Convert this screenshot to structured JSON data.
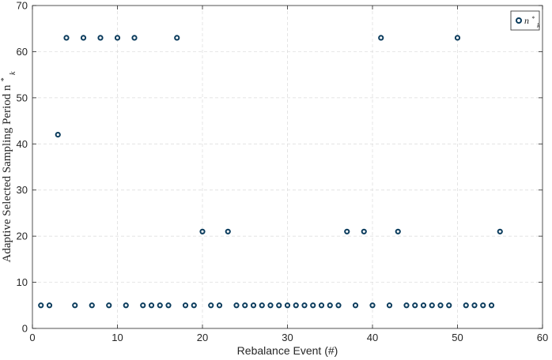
{
  "chart_data": {
    "type": "scatter",
    "title": "",
    "xlabel": "Rebalance Event (#)",
    "ylabel_main": "Adaptive Selected Sampling Period n",
    "ylabel_sub": "k",
    "ylabel_sup": "*",
    "xlim": [
      0,
      60
    ],
    "ylim": [
      0,
      70
    ],
    "xticks": [
      0,
      10,
      20,
      30,
      40,
      50,
      60
    ],
    "yticks": [
      0,
      10,
      20,
      30,
      40,
      50,
      60,
      70
    ],
    "grid": true,
    "legend_position": "top-right",
    "series": [
      {
        "name": "n*k",
        "legend_main": "n",
        "legend_sub": "k",
        "legend_sup": "*",
        "color": "#0b3c5d",
        "marker": "open-circle",
        "x": [
          1,
          2,
          3,
          4,
          5,
          6,
          7,
          8,
          9,
          10,
          11,
          12,
          13,
          14,
          15,
          16,
          17,
          18,
          19,
          20,
          21,
          22,
          23,
          24,
          25,
          26,
          27,
          28,
          29,
          30,
          31,
          32,
          33,
          34,
          35,
          36,
          37,
          38,
          39,
          40,
          41,
          42,
          43,
          44,
          45,
          46,
          47,
          48,
          49,
          50,
          51,
          52,
          53,
          54,
          55
        ],
        "y": [
          5,
          5,
          42,
          63,
          5,
          63,
          5,
          63,
          5,
          63,
          5,
          63,
          5,
          5,
          5,
          5,
          63,
          5,
          5,
          21,
          5,
          5,
          21,
          5,
          5,
          5,
          5,
          5,
          5,
          5,
          5,
          5,
          5,
          5,
          5,
          5,
          21,
          5,
          21,
          5,
          63,
          5,
          21,
          5,
          5,
          5,
          5,
          5,
          5,
          63,
          5,
          5,
          5,
          5,
          21
        ]
      }
    ]
  }
}
